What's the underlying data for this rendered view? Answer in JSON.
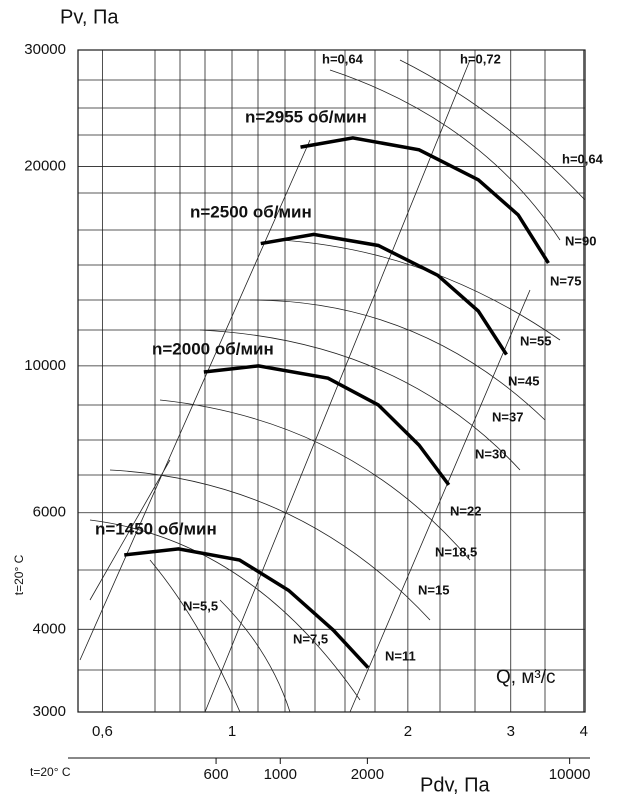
{
  "chart_data": {
    "type": "line",
    "y_label": "Pv, Па",
    "x_label": "Q, м³/с",
    "x2_label": "Pdv, Па",
    "temperature_labels": [
      "t=20° C",
      "t=20° C"
    ],
    "log_x": true,
    "log_y": true,
    "grid": true,
    "xlim": [
      0.545,
      4.02
    ],
    "xticks": [
      {
        "value": 0.6,
        "label": "0,6"
      },
      1,
      2,
      3,
      4
    ],
    "x2lim": [
      200,
      11300
    ],
    "x2ticks": [
      600,
      1000,
      2000,
      10000
    ],
    "ylim": [
      3000,
      30000
    ],
    "yticks": [
      3000,
      4000,
      6000,
      10000,
      20000,
      30000
    ],
    "series": [
      {
        "name": "n=2955 об/мин",
        "color": "#000000",
        "x": [
          1.31,
          1.61,
          2.09,
          2.64,
          3.09,
          3.48
        ],
        "values": [
          21400,
          22100,
          21200,
          19100,
          16900,
          14300
        ]
      },
      {
        "name": "n=2500 об/мин",
        "color": "#000000",
        "x": [
          1.12,
          1.38,
          1.78,
          2.25,
          2.64,
          2.95
        ],
        "values": [
          15300,
          15800,
          15200,
          13700,
          12100,
          10400
        ]
      },
      {
        "name": "n=2000 об/мин",
        "color": "#000000",
        "x": [
          0.895,
          1.11,
          1.46,
          1.78,
          2.09,
          2.35
        ],
        "values": [
          9790,
          10000,
          9580,
          8730,
          7590,
          6610
        ]
      },
      {
        "name": "n=1450 об/мин",
        "color": "#000000",
        "x": [
          0.654,
          0.81,
          1.03,
          1.25,
          1.49,
          1.71
        ],
        "values": [
          5180,
          5290,
          5090,
          4580,
          3990,
          3500
        ]
      }
    ],
    "annotations": [
      "h=0,64",
      "h=0,72",
      "h=0,64",
      "N=90",
      "N=75",
      "N=55",
      "N=45",
      "N=37",
      "N=30",
      "N=22",
      "N=18,5",
      "N=15",
      "N=11",
      "N=5,5",
      "N=7,5"
    ]
  }
}
